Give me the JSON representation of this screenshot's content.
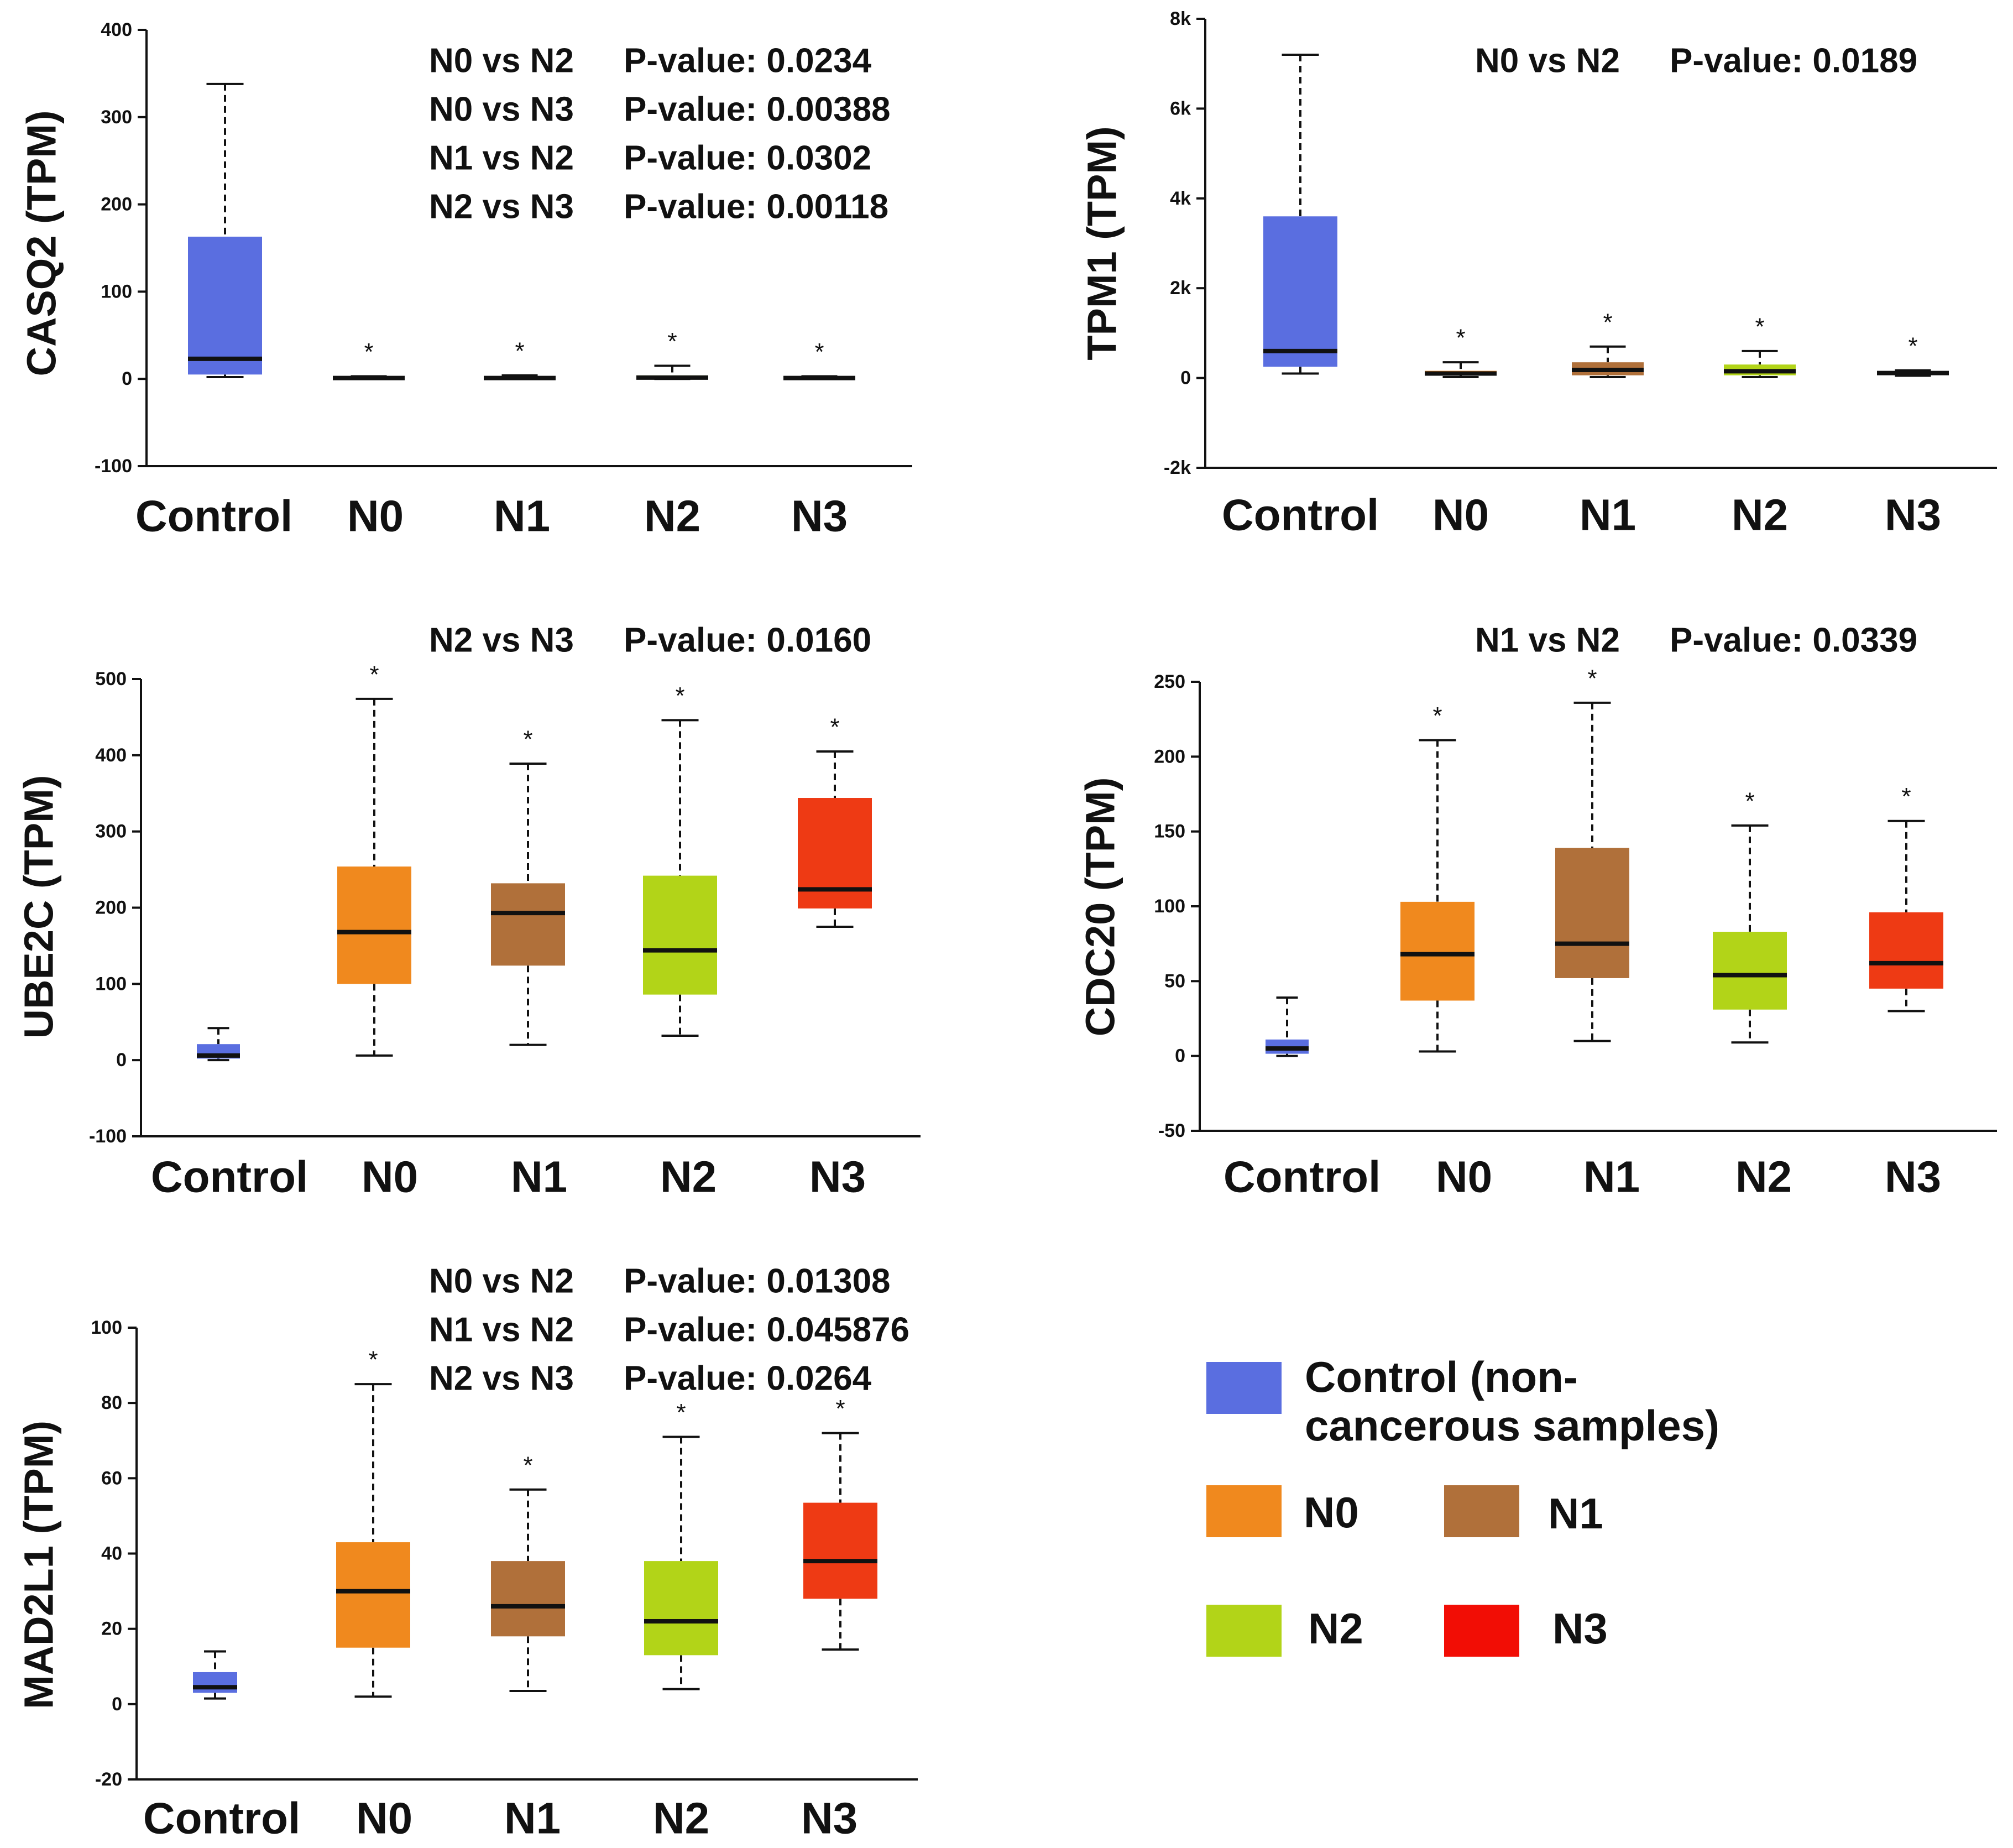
{
  "colors": {
    "Control": "#5a6ee0",
    "N0": "#f0891e",
    "N1": "#b0703a",
    "N2": "#b2d418",
    "N3": "#ee3a14",
    "N3_legend": "#f20d05"
  },
  "legend": {
    "control_line1": "Control (non-",
    "control_line2": "cancerous samples)",
    "n0": "N0",
    "n1": "N1",
    "n2": "N2",
    "n3": "N3"
  },
  "chart_data": [
    {
      "id": "casq2",
      "type": "box",
      "ylabel": "CASQ2 (TPM)",
      "categories": [
        "Control",
        "N0",
        "N1",
        "N2",
        "N3"
      ],
      "ylim": [
        -100,
        400
      ],
      "yticks": [
        -100,
        0,
        100,
        200,
        300,
        400
      ],
      "ytick_labels": [
        "-100",
        "0",
        "100",
        "200",
        "300",
        "400"
      ],
      "annotations": [
        {
          "label": "N0 vs N2",
          "value": "P-value: 0.0234"
        },
        {
          "label": "N0 vs N3",
          "value": "P-value: 0.00388"
        },
        {
          "label": "N1 vs N2",
          "value": "P-value: 0.0302"
        },
        {
          "label": "N2 vs N3",
          "value": "P-value: 0.00118"
        }
      ],
      "boxes": [
        {
          "group": "Control",
          "min": 2,
          "q1": 5,
          "median": 23,
          "q3": 163,
          "max": 338,
          "significant": false
        },
        {
          "group": "N0",
          "min": 0,
          "q1": 0.5,
          "median": 1,
          "q3": 2,
          "max": 3,
          "significant": true
        },
        {
          "group": "N1",
          "min": 0,
          "q1": 0.5,
          "median": 1,
          "q3": 2.5,
          "max": 4,
          "significant": true
        },
        {
          "group": "N2",
          "min": 0,
          "q1": 0.5,
          "median": 1.5,
          "q3": 4,
          "max": 15,
          "significant": true
        },
        {
          "group": "N3",
          "min": 0,
          "q1": 0.5,
          "median": 1,
          "q3": 2,
          "max": 3,
          "significant": true
        }
      ]
    },
    {
      "id": "tpm1",
      "type": "box",
      "ylabel": "TPM1 (TPM)",
      "categories": [
        "Control",
        "N0",
        "N1",
        "N2",
        "N3"
      ],
      "ylim": [
        -2000,
        8000
      ],
      "yticks": [
        -2000,
        0,
        2000,
        4000,
        6000,
        8000
      ],
      "ytick_labels": [
        "-2k",
        "0",
        "2k",
        "4k",
        "6k",
        "8k"
      ],
      "annotations": [
        {
          "label": "N0 vs N2",
          "value": "P-value: 0.0189"
        }
      ],
      "boxes": [
        {
          "group": "Control",
          "min": 100,
          "q1": 250,
          "median": 600,
          "q3": 3600,
          "max": 7200,
          "significant": false
        },
        {
          "group": "N0",
          "min": 20,
          "q1": 60,
          "median": 100,
          "q3": 160,
          "max": 350,
          "significant": true
        },
        {
          "group": "N1",
          "min": 20,
          "q1": 60,
          "median": 180,
          "q3": 350,
          "max": 700,
          "significant": true
        },
        {
          "group": "N2",
          "min": 20,
          "q1": 60,
          "median": 150,
          "q3": 300,
          "max": 600,
          "significant": true
        },
        {
          "group": "N3",
          "min": 50,
          "q1": 80,
          "median": 110,
          "q3": 140,
          "max": 170,
          "significant": true
        }
      ]
    },
    {
      "id": "ube2c",
      "type": "box",
      "ylabel": "UBE2C (TPM)",
      "categories": [
        "Control",
        "N0",
        "N1",
        "N2",
        "N3"
      ],
      "ylim": [
        -100,
        500
      ],
      "yticks": [
        -100,
        0,
        100,
        200,
        300,
        400,
        500
      ],
      "ytick_labels": [
        "-100",
        "0",
        "100",
        "200",
        "300",
        "400",
        "500"
      ],
      "annotations": [
        {
          "label": "N2 vs N3",
          "value": "P-value: 0.0160"
        }
      ],
      "boxes": [
        {
          "group": "Control",
          "min": 0,
          "q1": 2,
          "median": 6,
          "q3": 21,
          "max": 42,
          "significant": false
        },
        {
          "group": "N0",
          "min": 6,
          "q1": 100,
          "median": 168,
          "q3": 254,
          "max": 474,
          "significant": true
        },
        {
          "group": "N1",
          "min": 20,
          "q1": 124,
          "median": 193,
          "q3": 232,
          "max": 389,
          "significant": true
        },
        {
          "group": "N2",
          "min": 32,
          "q1": 86,
          "median": 144,
          "q3": 242,
          "max": 446,
          "significant": true
        },
        {
          "group": "N3",
          "min": 175,
          "q1": 199,
          "median": 224,
          "q3": 344,
          "max": 405,
          "significant": true
        }
      ]
    },
    {
      "id": "cdc20",
      "type": "box",
      "ylabel": "CDC20 (TPM)",
      "categories": [
        "Control",
        "N0",
        "N1",
        "N2",
        "N3"
      ],
      "ylim": [
        -50,
        250
      ],
      "yticks": [
        -50,
        0,
        50,
        100,
        150,
        200,
        250
      ],
      "ytick_labels": [
        "-50",
        "0",
        "50",
        "100",
        "150",
        "200",
        "250"
      ],
      "annotations": [
        {
          "label": "N1 vs N2",
          "value": "P-value: 0.0339"
        }
      ],
      "boxes": [
        {
          "group": "Control",
          "min": 0,
          "q1": 1.5,
          "median": 5,
          "q3": 11,
          "max": 39,
          "significant": false
        },
        {
          "group": "N0",
          "min": 3,
          "q1": 37,
          "median": 68,
          "q3": 103,
          "max": 211,
          "significant": true
        },
        {
          "group": "N1",
          "min": 10,
          "q1": 52,
          "median": 75,
          "q3": 139,
          "max": 236,
          "significant": true
        },
        {
          "group": "N2",
          "min": 9,
          "q1": 31,
          "median": 54,
          "q3": 83,
          "max": 154,
          "significant": true
        },
        {
          "group": "N3",
          "min": 30,
          "q1": 45,
          "median": 62,
          "q3": 96,
          "max": 157,
          "significant": true
        }
      ]
    },
    {
      "id": "mad2l1",
      "type": "box",
      "ylabel": "MAD2L1 (TPM)",
      "categories": [
        "Control",
        "N0",
        "N1",
        "N2",
        "N3"
      ],
      "ylim": [
        -20,
        100
      ],
      "yticks": [
        -20,
        0,
        20,
        40,
        60,
        80,
        100
      ],
      "ytick_labels": [
        "-20",
        "0",
        "20",
        "40",
        "60",
        "80",
        "100"
      ],
      "annotations": [
        {
          "label": "N0 vs N2",
          "value": "P-value: 0.01308"
        },
        {
          "label": "N1 vs N2",
          "value": "P-value: 0.045876"
        },
        {
          "label": "N2 vs N3",
          "value": "P-value: 0.0264"
        }
      ],
      "boxes": [
        {
          "group": "Control",
          "min": 1.5,
          "q1": 3,
          "median": 4.5,
          "q3": 8.5,
          "max": 14,
          "significant": false
        },
        {
          "group": "N0",
          "min": 2,
          "q1": 15,
          "median": 30,
          "q3": 43,
          "max": 85,
          "significant": true
        },
        {
          "group": "N1",
          "min": 3.5,
          "q1": 18,
          "median": 26,
          "q3": 38,
          "max": 57,
          "significant": true
        },
        {
          "group": "N2",
          "min": 4,
          "q1": 13,
          "median": 22,
          "q3": 38,
          "max": 71,
          "significant": true
        },
        {
          "group": "N3",
          "min": 14.5,
          "q1": 28,
          "median": 38,
          "q3": 53.5,
          "max": 72,
          "significant": true
        }
      ]
    }
  ]
}
